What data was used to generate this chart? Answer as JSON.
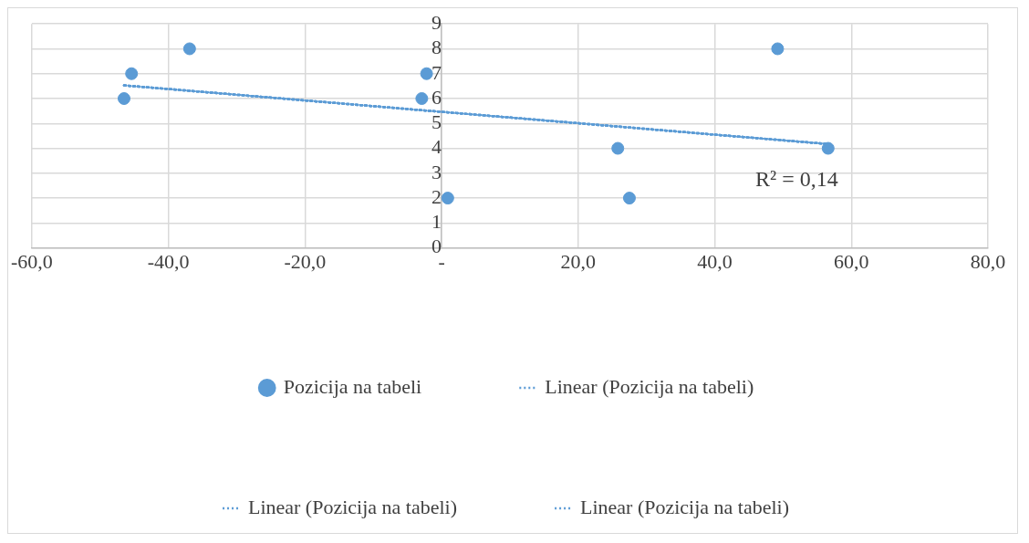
{
  "chart_data": {
    "type": "scatter",
    "series": [
      {
        "name": "Pozicija na tabeli",
        "type": "scatter",
        "color": "#5b9bd5",
        "x": [
          -46.5,
          -45.4,
          -36.9,
          -2.2,
          -2.9,
          0.9,
          25.8,
          27.5,
          49.2,
          56.6
        ],
        "values": [
          6,
          7,
          8,
          7,
          6,
          2,
          4,
          2,
          8,
          4
        ]
      },
      {
        "name": "Linear (Pozicija na tabeli)",
        "type": "line",
        "color": "#5b9bd5",
        "line_style": "dotted",
        "marker": "none",
        "x": [
          -46.5,
          56.6
        ],
        "values": [
          6.53,
          4.17
        ]
      },
      {
        "name": "Linear (Pozicija na tabeli)",
        "type": "line",
        "color": "#5b9bd5",
        "line_style": "dotted",
        "marker": "none",
        "x": [
          -46.5,
          56.6
        ],
        "values": [
          6.53,
          4.17
        ]
      },
      {
        "name": "Linear (Pozicija na tabeli)",
        "type": "line",
        "color": "#5b9bd5",
        "line_style": "dotted",
        "marker": "none",
        "x": [
          -46.5,
          56.6
        ],
        "values": [
          6.53,
          4.17
        ]
      }
    ],
    "marker": "circle",
    "xlim": [
      -60,
      80
    ],
    "xticks": [
      {
        "value": -60,
        "label": "-60,0"
      },
      {
        "value": -40,
        "label": "-40,0"
      },
      {
        "value": -20,
        "label": "-20,0"
      },
      {
        "value": 0,
        "label": "-"
      },
      {
        "value": 20,
        "label": "20,0"
      },
      {
        "value": 40,
        "label": "40,0"
      },
      {
        "value": 60,
        "label": "60,0"
      },
      {
        "value": 80,
        "label": "80,0"
      }
    ],
    "ylim": [
      0,
      9
    ],
    "yticks": [
      0,
      1,
      2,
      3,
      4,
      5,
      6,
      7,
      8,
      9
    ],
    "grid": true,
    "legend": "bottom",
    "annotations": [
      "R² = 0,14"
    ]
  }
}
